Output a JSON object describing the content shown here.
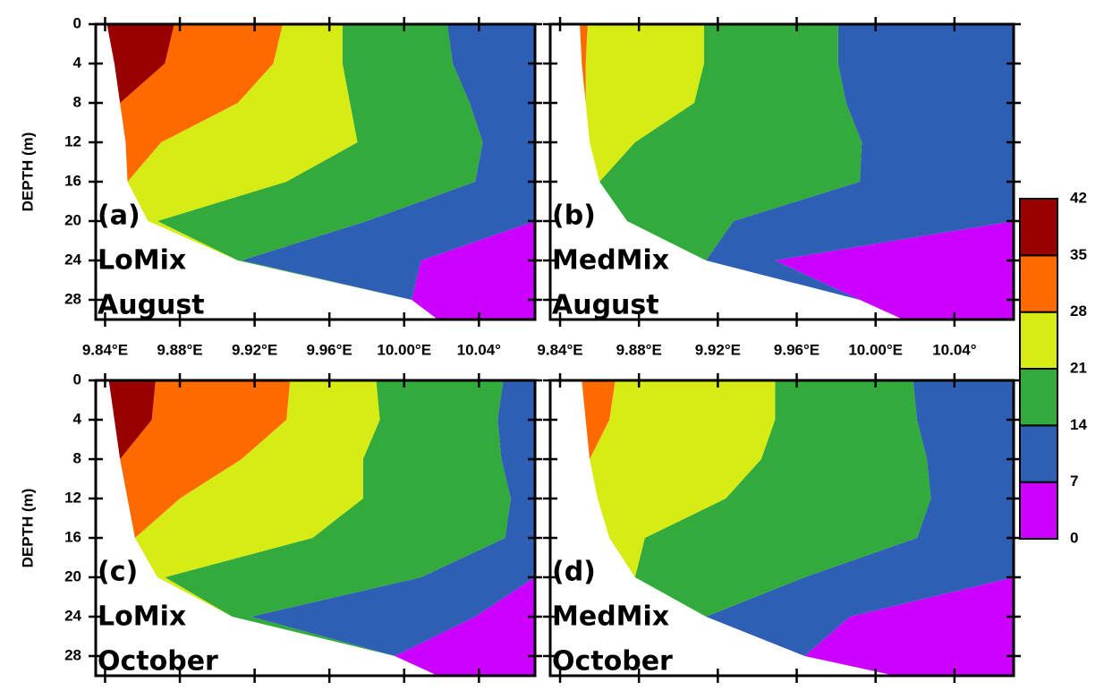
{
  "chart_data": [
    {
      "type": "contour",
      "annotation": [
        "(a)",
        "LoMix",
        "August"
      ],
      "ylabel": "DEPTH (m)",
      "y": [
        0,
        4,
        8,
        12,
        16,
        20,
        24,
        28,
        30
      ],
      "shore": [
        9.841,
        9.845,
        9.848,
        9.851,
        9.852,
        9.863,
        9.911,
        10.004,
        10.018
      ],
      "contours": [
        {
          "level": 7,
          "lon": [
            10.07,
            10.07,
            10.07,
            10.07,
            10.07,
            10.07,
            10.009,
            10.004,
            10.018
          ]
        },
        {
          "level": 14,
          "lon": [
            10.023,
            10.026,
            10.035,
            10.042,
            10.038,
            9.98,
            9.913,
            10.004,
            10.018
          ]
        },
        {
          "level": 21,
          "lon": [
            9.967,
            9.967,
            9.971,
            9.975,
            9.937,
            9.868,
            9.911,
            10.004,
            10.018
          ]
        },
        {
          "level": 28,
          "lon": [
            9.935,
            9.93,
            9.911,
            9.87,
            9.852,
            9.863,
            9.911,
            10.004,
            10.018
          ]
        },
        {
          "level": 35,
          "lon": [
            9.877,
            9.872,
            9.848,
            9.851,
            9.852,
            9.863,
            9.911,
            10.004,
            10.018
          ]
        }
      ],
      "xlim": [
        9.835,
        10.07
      ],
      "ylim": [
        0,
        30
      ],
      "xticks": [
        {
          "value": 9.84,
          "label": "9.84°E"
        },
        {
          "value": 9.88,
          "label": "9.88°E"
        },
        {
          "value": 9.92,
          "label": "9.92°E"
        },
        {
          "value": 9.96,
          "label": "9.96°E"
        },
        {
          "value": 10.0,
          "label": "10.00°E"
        },
        {
          "value": 10.04,
          "label": "10.04°"
        }
      ],
      "yticks": [
        0,
        4,
        8,
        12,
        16,
        20,
        24,
        28
      ]
    },
    {
      "type": "contour",
      "annotation": [
        "(b)",
        "MedMix",
        "August"
      ],
      "y": [
        0,
        4,
        8,
        12,
        16,
        20,
        24,
        28,
        30
      ],
      "shore": [
        9.85,
        9.851,
        9.853,
        9.855,
        9.86,
        9.874,
        9.914,
        9.992,
        10.014
      ],
      "contours": [
        {
          "level": 7,
          "lon": [
            10.07,
            10.07,
            10.07,
            10.07,
            10.07,
            10.07,
            9.949,
            9.992,
            10.014
          ]
        },
        {
          "level": 14,
          "lon": [
            9.981,
            9.981,
            9.985,
            9.993,
            9.992,
            9.928,
            9.914,
            9.992,
            10.014
          ]
        },
        {
          "level": 21,
          "lon": [
            9.913,
            9.913,
            9.908,
            9.878,
            9.86,
            9.874,
            9.914,
            9.992,
            10.014
          ]
        },
        {
          "level": 28,
          "lon": [
            9.854,
            9.853,
            9.853,
            9.855,
            9.86,
            9.874,
            9.914,
            9.992,
            10.014
          ]
        },
        {
          "level": 35,
          "lon": [
            9.85,
            9.851,
            9.853,
            9.855,
            9.86,
            9.874,
            9.914,
            9.992,
            10.014
          ]
        }
      ],
      "xlim": [
        9.835,
        10.07
      ],
      "ylim": [
        0,
        30
      ],
      "xticks": [
        {
          "value": 9.84,
          "label": "9.84°E"
        },
        {
          "value": 9.88,
          "label": "9.88°E"
        },
        {
          "value": 9.92,
          "label": "9.92°E"
        },
        {
          "value": 9.96,
          "label": "9.96°E"
        },
        {
          "value": 10.0,
          "label": "10.00°E"
        },
        {
          "value": 10.04,
          "label": "10.04°"
        }
      ],
      "yticks": [
        0,
        4,
        8,
        12,
        16,
        20,
        24,
        28
      ]
    },
    {
      "type": "contour",
      "annotation": [
        "(c)",
        "LoMix",
        "October"
      ],
      "ylabel": "DEPTH (m)",
      "y": [
        0,
        4,
        8,
        12,
        16,
        20,
        24,
        28,
        30
      ],
      "shore": [
        9.842,
        9.845,
        9.848,
        9.852,
        9.856,
        9.868,
        9.908,
        9.995,
        10.018
      ],
      "contours": [
        {
          "level": 7,
          "lon": [
            10.07,
            10.07,
            10.07,
            10.07,
            10.07,
            10.07,
            10.038,
            9.995,
            10.018
          ]
        },
        {
          "level": 14,
          "lon": [
            10.053,
            10.05,
            10.052,
            10.057,
            10.054,
            10.009,
            9.918,
            9.995,
            10.018
          ]
        },
        {
          "level": 21,
          "lon": [
            9.985,
            9.987,
            9.978,
            9.978,
            9.951,
            9.872,
            9.908,
            9.995,
            10.018
          ]
        },
        {
          "level": 28,
          "lon": [
            9.939,
            9.937,
            9.913,
            9.88,
            9.856,
            9.868,
            9.908,
            9.995,
            10.018
          ]
        },
        {
          "level": 35,
          "lon": [
            9.867,
            9.865,
            9.848,
            9.852,
            9.856,
            9.868,
            9.908,
            9.995,
            10.018
          ]
        }
      ],
      "xlim": [
        9.835,
        10.07
      ],
      "ylim": [
        0,
        30
      ],
      "xticks": [
        9.84,
        9.88,
        9.92,
        9.96,
        10.0,
        10.04
      ],
      "yticks": [
        0,
        4,
        8,
        12,
        16,
        20,
        24,
        28
      ]
    },
    {
      "type": "contour",
      "annotation": [
        "(d)",
        "MedMix",
        "October"
      ],
      "y": [
        0,
        4,
        8,
        12,
        16,
        20,
        24,
        28,
        30
      ],
      "shore": [
        9.851,
        9.853,
        9.855,
        9.859,
        9.865,
        9.878,
        9.914,
        9.964,
        10.01
      ],
      "contours": [
        {
          "level": 7,
          "lon": [
            10.07,
            10.07,
            10.07,
            10.07,
            10.07,
            10.07,
            9.987,
            9.964,
            10.01
          ]
        },
        {
          "level": 14,
          "lon": [
            10.019,
            10.021,
            10.026,
            10.028,
            10.021,
            9.964,
            9.914,
            9.964,
            10.01
          ]
        },
        {
          "level": 21,
          "lon": [
            9.949,
            9.949,
            9.942,
            9.924,
            9.883,
            9.878,
            9.914,
            9.964,
            10.01
          ]
        },
        {
          "level": 28,
          "lon": [
            9.868,
            9.865,
            9.855,
            9.859,
            9.865,
            9.878,
            9.914,
            9.964,
            10.01
          ]
        },
        {
          "level": 35,
          "lon": [
            9.851,
            9.853,
            9.855,
            9.859,
            9.865,
            9.878,
            9.914,
            9.964,
            10.01
          ]
        }
      ],
      "xlim": [
        9.835,
        10.07
      ],
      "ylim": [
        0,
        30
      ],
      "xticks": [
        9.84,
        9.88,
        9.92,
        9.96,
        10.0,
        10.04
      ],
      "yticks": [
        0,
        4,
        8,
        12,
        16,
        20,
        24,
        28
      ]
    }
  ],
  "colorbar": {
    "levels": [
      0,
      7,
      14,
      21,
      28,
      35,
      42
    ],
    "colors": [
      "#cc00ff",
      "#2e5fb4",
      "#33aa3c",
      "#d6ec14",
      "#ff6a00",
      "#990000"
    ]
  }
}
